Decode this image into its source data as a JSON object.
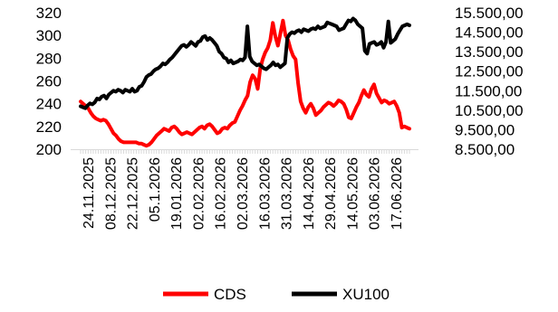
{
  "chart_data": {
    "type": "line",
    "title": "",
    "xlabel": "",
    "ylabel": "",
    "y_left": {
      "ticks": [
        "320",
        "300",
        "280",
        "260",
        "240",
        "220",
        "200"
      ],
      "ylim": [
        200,
        320
      ]
    },
    "y_right": {
      "ticks": [
        "15.500,00",
        "14.500,00",
        "13.500,00",
        "12.500,00",
        "11.500,00",
        "10.500,00",
        "9.500,00",
        "8.500,00"
      ],
      "ylim": [
        8500,
        15500
      ]
    },
    "x_tick_labels": [
      "24.11.2025",
      "08.12.2025",
      "22.12.2025",
      "05.1.2026",
      "19.01.2026",
      "02.02.2026",
      "16.02.2026",
      "02.03.2026",
      "16.03.2026",
      "31.03.2026",
      "14.04.2026",
      "29.04.2026",
      "14.05.2026",
      "03.06.2026",
      "17.06.2026"
    ],
    "legend": "bottom-center",
    "series": [
      {
        "name": "CDS",
        "color": "#ff0000",
        "axis": "left",
        "values": [
          242,
          240,
          238,
          236,
          232,
          229,
          227,
          226,
          225,
          226,
          225,
          222,
          218,
          214,
          212,
          209,
          207,
          206,
          206,
          206,
          206,
          206,
          206,
          205,
          205,
          204,
          203,
          204,
          206,
          209,
          212,
          214,
          216,
          218,
          217,
          216,
          219,
          220,
          218,
          215,
          213,
          214,
          215,
          214,
          213,
          215,
          217,
          219,
          220,
          218,
          221,
          222,
          220,
          217,
          214,
          215,
          218,
          219,
          218,
          221,
          223,
          224,
          229,
          234,
          238,
          243,
          247,
          259,
          265,
          262,
          253,
          271,
          279,
          285,
          289,
          296,
          311,
          299,
          291,
          302,
          313,
          300,
          296,
          288,
          282,
          279,
          258,
          242,
          236,
          232,
          237,
          240,
          236,
          230,
          232,
          234,
          237,
          239,
          241,
          240,
          238,
          240,
          243,
          242,
          240,
          235,
          228,
          227,
          232,
          237,
          241,
          247,
          252,
          248,
          246,
          253,
          257,
          249,
          245,
          241,
          243,
          242,
          240,
          241,
          242,
          238,
          232,
          219,
          220,
          219,
          218
        ]
      },
      {
        "name": "XU100",
        "color": "#000000",
        "axis": "right",
        "values": [
          10700,
          10650,
          10600,
          10750,
          10850,
          10800,
          10900,
          11100,
          11050,
          11200,
          11250,
          11100,
          11300,
          11400,
          11500,
          11450,
          11550,
          11500,
          11400,
          11550,
          11500,
          11450,
          11600,
          11450,
          11500,
          11700,
          11750,
          11950,
          12200,
          12300,
          12350,
          12500,
          12600,
          12650,
          12750,
          12900,
          12850,
          12950,
          13100,
          13200,
          13350,
          13500,
          13650,
          13800,
          13850,
          13750,
          13850,
          14000,
          13900,
          13800,
          14000,
          14050,
          14250,
          14300,
          14100,
          14200,
          14100,
          13950,
          13800,
          13500,
          13400,
          13200,
          13150,
          12950,
          13050,
          12900,
          12950,
          13000,
          13100,
          13050,
          13200,
          14800,
          13250,
          13000,
          12900,
          12800,
          12850,
          12750,
          12650,
          12600,
          12700,
          12800,
          12950,
          12800,
          12850,
          12700,
          12800,
          12900,
          14200,
          14400,
          14500,
          14450,
          14550,
          14600,
          14500,
          14650,
          14600,
          14550,
          14650,
          14700,
          14650,
          14800,
          14700,
          14750,
          14800,
          15000,
          14950,
          14900,
          14850,
          14800,
          14600,
          14650,
          14700,
          14900,
          15100,
          15050,
          15200,
          15100,
          14900,
          14800,
          14700,
          13550,
          13400,
          13900,
          13950,
          14000,
          13850,
          13900,
          14000,
          13700,
          14000,
          15050,
          13950,
          14050,
          14150,
          14400,
          14600,
          14800,
          14850,
          14900,
          14850
        ]
      }
    ]
  }
}
